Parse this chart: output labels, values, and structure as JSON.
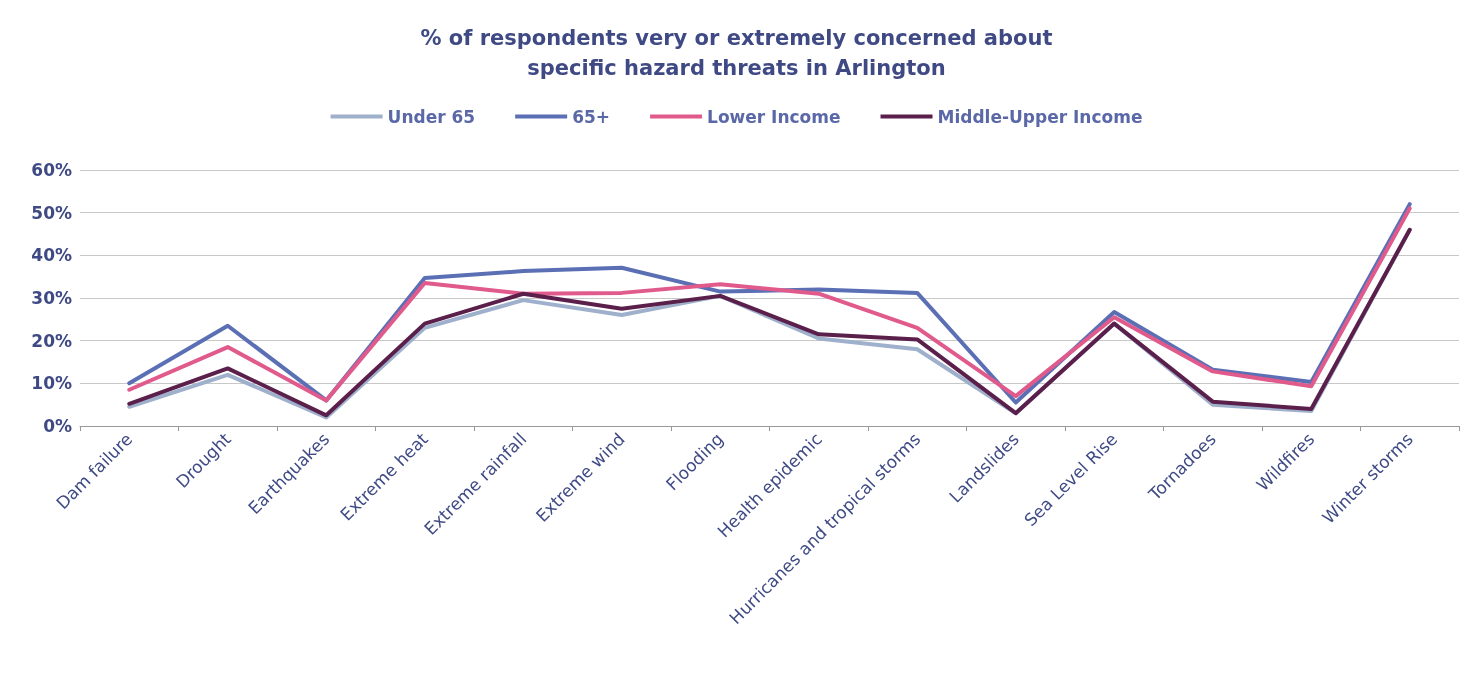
{
  "chart_data": {
    "type": "line",
    "title": "% of respondents very or extremely concerned about\nspecific hazard threats in Arlington",
    "categories": [
      "Dam failure",
      "Drought",
      "Earthquakes",
      "Extreme heat",
      "Extreme rainfall",
      "Extreme wind",
      "Flooding",
      "Health epidemic",
      "Hurricanes and tropical storms",
      "Landslides",
      "Sea Level Rise",
      "Tornadoes",
      "Wildfires",
      "Winter storms"
    ],
    "series": [
      {
        "name": "Under 65",
        "color": "#9fb0cc",
        "values": [
          4.5,
          12,
          2,
          23,
          29.5,
          26,
          30.5,
          20.5,
          18,
          3,
          24,
          5,
          3.5,
          46
        ]
      },
      {
        "name": "65+",
        "color": "#5b6fb5",
        "values": [
          10,
          23.5,
          6,
          34.7,
          36.3,
          37.1,
          31.5,
          32,
          31.2,
          5.5,
          26.7,
          13.2,
          10.3,
          52
        ]
      },
      {
        "name": "Lower Income",
        "color": "#e05a8c",
        "values": [
          8.5,
          18.5,
          6,
          33.5,
          31,
          31.2,
          33.2,
          31,
          23,
          7,
          25.5,
          12.8,
          9.3,
          51
        ]
      },
      {
        "name": "Middle-Upper Income",
        "color": "#5a1f4a",
        "values": [
          5.2,
          13.5,
          2.5,
          24,
          31,
          27.5,
          30.5,
          21.5,
          20.3,
          3,
          24,
          5.7,
          4,
          46
        ]
      }
    ],
    "ylim": [
      0,
      60
    ],
    "yticks": [
      {
        "value": 0,
        "label": "0%"
      },
      {
        "value": 10,
        "label": "10%"
      },
      {
        "value": 20,
        "label": "20%"
      },
      {
        "value": 30,
        "label": "30%"
      },
      {
        "value": 40,
        "label": "40%"
      },
      {
        "value": 50,
        "label": "50%"
      },
      {
        "value": 60,
        "label": "60%"
      }
    ],
    "grid": "y",
    "legend": "top",
    "marker": "none",
    "line_style": "solid"
  }
}
